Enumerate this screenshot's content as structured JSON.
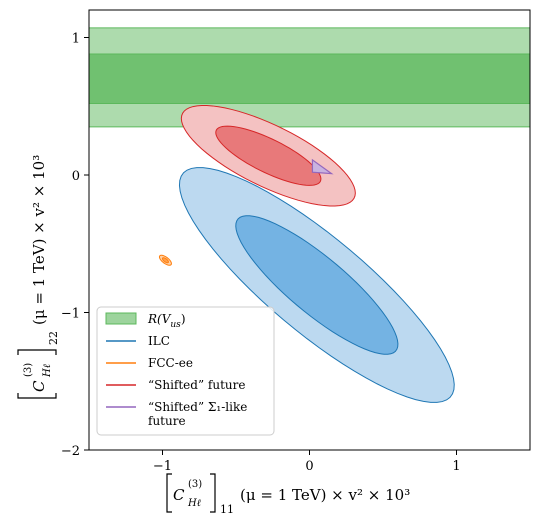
{
  "chart_data": {
    "type": "contour",
    "xlabel": "[C_{Hℓ}^{(3)}]_{11} (μ = 1 TeV) × v² × 10³",
    "ylabel": "[C_{Hℓ}^{(3)}]_{22} (μ = 1 TeV) × v² × 10³",
    "xlabel_parts": {
      "main": "C",
      "sup": "(3)",
      "sub": "Hℓ",
      "outer_sub": "11",
      "tail": "(μ = 1 TeV) × v² × 10³"
    },
    "ylabel_parts": {
      "main": "C",
      "sup": "(3)",
      "sub": "Hℓ",
      "outer_sub": "22",
      "tail": "(μ = 1 TeV) × v² × 10³"
    },
    "xlim": [
      -1.5,
      1.5
    ],
    "ylim": [
      -2,
      1.2
    ],
    "xticks": [
      -1,
      0,
      1
    ],
    "yticks": [
      -2,
      -1,
      0,
      1
    ],
    "xtick_labels": [
      "−1",
      "0",
      "1"
    ],
    "ytick_labels": [
      "−2",
      "−1",
      "0",
      "1"
    ],
    "grid": false,
    "legend_position": "bottom-left",
    "series": [
      {
        "name": "R(V_us)",
        "kind": "band",
        "color": "#5cb85c",
        "band_outer": [
          0.35,
          1.07
        ],
        "band_inner": [
          0.52,
          0.88
        ]
      },
      {
        "name": "ILC",
        "kind": "ellipse",
        "color": "#1f77b4",
        "fill_outer": "#bcd9f0",
        "fill_inner": "#74b3e3",
        "center": [
          0.05,
          -0.8
        ],
        "outer": {
          "a": 1.22,
          "b": 0.34,
          "angle_deg": -42
        },
        "inner": {
          "a": 0.72,
          "b": 0.2,
          "angle_deg": -42
        }
      },
      {
        "name": "FCC-ee",
        "kind": "ellipse",
        "color": "#ff7f0e",
        "fill_outer": "#ffd1a6",
        "fill_inner": "#ff9f4a",
        "center": [
          -0.98,
          -0.62
        ],
        "outer": {
          "a": 0.05,
          "b": 0.022,
          "angle_deg": -40
        },
        "inner": {
          "a": 0.025,
          "b": 0.011,
          "angle_deg": -40
        }
      },
      {
        "name": "“Shifted” future",
        "kind": "ellipse",
        "color": "#d62728",
        "fill_outer": "#f4c2c2",
        "fill_inner": "#e8797a",
        "center": [
          -0.28,
          0.14
        ],
        "outer": {
          "a": 0.66,
          "b": 0.22,
          "angle_deg": -28
        },
        "inner": {
          "a": 0.4,
          "b": 0.12,
          "angle_deg": -28
        }
      },
      {
        "name": "“Shifted” Σ₁-like future",
        "kind": "triangle",
        "color": "#9467bd",
        "fill": "#c9b3e0",
        "vertices": [
          [
            0.02,
            0.02
          ],
          [
            0.02,
            0.11
          ],
          [
            0.15,
            0.01
          ]
        ]
      }
    ],
    "legend": [
      {
        "label": "R(V_us)",
        "label_parts": {
          "main": "R(V",
          "sub": "us",
          "tail": ")"
        },
        "style": "patch",
        "color": "#5cb85c"
      },
      {
        "label": "ILC",
        "style": "line",
        "color": "#1f77b4"
      },
      {
        "label": "FCC-ee",
        "style": "line",
        "color": "#ff7f0e"
      },
      {
        "label": "“Shifted” future",
        "style": "line",
        "color": "#d62728"
      },
      {
        "label": "“Shifted” Σ₁-like future",
        "label_lines": [
          "“Shifted” Σ₁-like",
          "future"
        ],
        "style": "line",
        "color": "#9467bd"
      }
    ]
  }
}
